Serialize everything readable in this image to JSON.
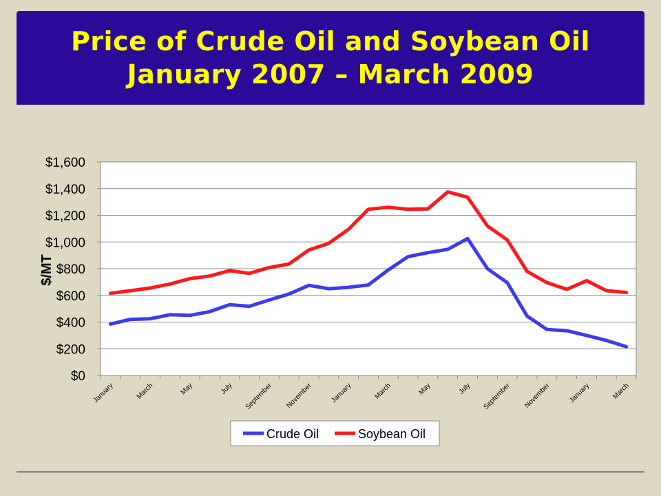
{
  "title": {
    "line1": "Price of Crude Oil and Soybean Oil",
    "line2": "January 2007 – March 2009"
  },
  "colors": {
    "background": "#ddd9c3",
    "banner": "#2b0a9a",
    "title_text": "#ffff00",
    "crude_oil": "#3b3bf0",
    "soybean_oil": "#ff1a1a"
  },
  "chart_data": {
    "type": "line",
    "ylabel": "$/MT",
    "xlabel": "",
    "ylim": [
      0,
      1600
    ],
    "yticks": [
      0,
      200,
      400,
      600,
      800,
      1000,
      1200,
      1400,
      1600
    ],
    "ytick_labels": [
      "$0",
      "$200",
      "$400",
      "$600",
      "$800",
      "$1,000",
      "$1,200",
      "$1,400",
      "$1,600"
    ],
    "grid": true,
    "legend_position": "bottom",
    "x": [
      "2007-01",
      "2007-02",
      "2007-03",
      "2007-04",
      "2007-05",
      "2007-06",
      "2007-07",
      "2007-08",
      "2007-09",
      "2007-10",
      "2007-11",
      "2007-12",
      "2008-01",
      "2008-02",
      "2008-03",
      "2008-04",
      "2008-05",
      "2008-06",
      "2008-07",
      "2008-08",
      "2008-09",
      "2008-10",
      "2008-11",
      "2008-12",
      "2009-01",
      "2009-02",
      "2009-03"
    ],
    "xtick_labels": [
      "January",
      "March",
      "May",
      "July",
      "September",
      "November",
      "January",
      "March",
      "May",
      "July",
      "September",
      "November",
      "January",
      "March"
    ],
    "series": [
      {
        "name": "Crude Oil",
        "color": "#3b3bf0",
        "values": [
          385,
          420,
          425,
          455,
          450,
          478,
          530,
          518,
          565,
          610,
          675,
          650,
          660,
          678,
          790,
          890,
          920,
          945,
          1025,
          800,
          695,
          445,
          345,
          335,
          300,
          262,
          215
        ]
      },
      {
        "name": "Soybean Oil",
        "color": "#ff1a1a",
        "values": [
          615,
          635,
          655,
          685,
          725,
          745,
          785,
          765,
          808,
          835,
          940,
          990,
          1095,
          1245,
          1260,
          1245,
          1248,
          1375,
          1335,
          1120,
          1015,
          780,
          695,
          645,
          710,
          635,
          622
        ]
      }
    ]
  }
}
